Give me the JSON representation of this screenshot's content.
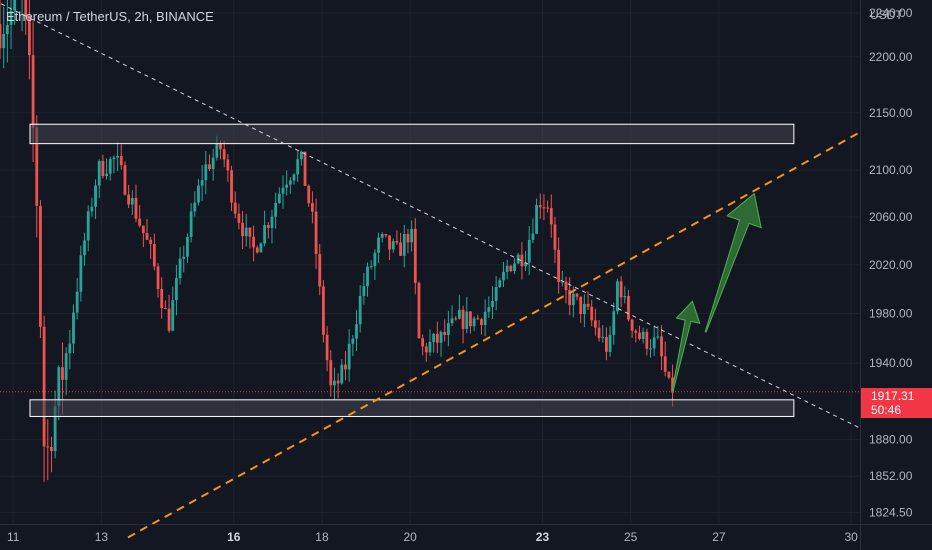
{
  "chart_title": "Ethereum / TetherUS, 2h, BINANCE",
  "price_unit": "USDT",
  "current_price": {
    "value": "1917.31",
    "countdown": "50:46"
  },
  "colors": {
    "background": "#131722",
    "up_candle": "#26a69a",
    "down_candle": "#ef5350",
    "trendline_dashed": "#d1d4dc",
    "support_trendline": "#f7931a",
    "zone_fill": "#434651",
    "zone_border": "#ffffff",
    "arrow_fill": "#2e6b34",
    "arrow_stroke": "#4caf50",
    "price_badge": "#f23645"
  },
  "chart_data": {
    "type": "candlestick",
    "x_ticks": [
      {
        "label": "11",
        "x": 11,
        "bold": false
      },
      {
        "label": "13",
        "x": 13,
        "bold": false
      },
      {
        "label": "16",
        "x": 16,
        "bold": true
      },
      {
        "label": "18",
        "x": 18,
        "bold": false
      },
      {
        "label": "20",
        "x": 20,
        "bold": false
      },
      {
        "label": "23",
        "x": 23,
        "bold": true
      },
      {
        "label": "25",
        "x": 25,
        "bold": false
      },
      {
        "label": "27",
        "x": 27,
        "bold": false
      },
      {
        "label": "30",
        "x": 30,
        "bold": false
      }
    ],
    "y_ticks": [
      2240,
      2200,
      2150,
      2100,
      2060,
      2020,
      1980,
      1940,
      1880,
      1852,
      1824.5
    ],
    "y_tick_labels": [
      "2240.00",
      "2200.00",
      "2150.00",
      "2100.00",
      "2060.00",
      "2020.00",
      "1980.00",
      "1940.00",
      "1880.00",
      "1852.00",
      "1824.50"
    ],
    "y_scale": "log",
    "x_range": [
      10.7,
      30.2
    ],
    "y_range": [
      1816,
      2252
    ],
    "price_series": [
      [
        10.7,
        2230
      ],
      [
        11.3,
        2248
      ],
      [
        11.4,
        2210
      ],
      [
        11.6,
        2095
      ],
      [
        11.8,
        1858
      ],
      [
        12.0,
        1900
      ],
      [
        12.3,
        1950
      ],
      [
        12.7,
        2040
      ],
      [
        13.0,
        2100
      ],
      [
        13.4,
        2110
      ],
      [
        13.8,
        2070
      ],
      [
        14.2,
        2030
      ],
      [
        14.6,
        1970
      ],
      [
        15.0,
        2040
      ],
      [
        15.4,
        2100
      ],
      [
        15.8,
        2120
      ],
      [
        16.1,
        2070
      ],
      [
        16.5,
        2030
      ],
      [
        16.9,
        2060
      ],
      [
        17.2,
        2090
      ],
      [
        17.6,
        2110
      ],
      [
        17.9,
        2050
      ],
      [
        18.1,
        1970
      ],
      [
        18.3,
        1915
      ],
      [
        18.6,
        1935
      ],
      [
        19.0,
        2000
      ],
      [
        19.4,
        2040
      ],
      [
        19.8,
        2030
      ],
      [
        20.1,
        2050
      ],
      [
        20.3,
        1950
      ],
      [
        20.8,
        1960
      ],
      [
        21.2,
        1975
      ],
      [
        21.6,
        1975
      ],
      [
        22.0,
        1990
      ],
      [
        22.3,
        2020
      ],
      [
        22.7,
        2030
      ],
      [
        23.0,
        2075
      ],
      [
        23.25,
        2070
      ],
      [
        23.45,
        2000
      ],
      [
        23.8,
        1990
      ],
      [
        24.1,
        1980
      ],
      [
        24.4,
        1960
      ],
      [
        24.6,
        1950
      ],
      [
        24.8,
        2010
      ],
      [
        25.0,
        1980
      ],
      [
        25.3,
        1960
      ],
      [
        25.7,
        1955
      ],
      [
        25.95,
        1920
      ]
    ],
    "overlays": {
      "resistance_zone": {
        "x_start": 10.7,
        "x_end": 28.7,
        "top": 2140,
        "bottom": 2123
      },
      "support_zone": {
        "x_start": 10.7,
        "x_end": 28.7,
        "top": 1911,
        "bottom": 1898
      },
      "descending_trendline": {
        "points": [
          [
            10.4,
            2255
          ],
          [
            30.2,
            1889
          ]
        ],
        "style": "dashed-white"
      },
      "ascending_trendline": {
        "points": [
          [
            13.6,
            1806
          ],
          [
            30.2,
            2133
          ]
        ],
        "style": "dashed-orange"
      },
      "current_price_line": {
        "value": 1917.31,
        "style": "dotted-red"
      },
      "projection_arrows": [
        {
          "from": [
            25.95,
            1918
          ],
          "to": [
            26.4,
            1990
          ],
          "size": "small"
        },
        {
          "from": [
            26.7,
            1965
          ],
          "to": [
            27.8,
            2080
          ],
          "size": "large"
        }
      ]
    }
  }
}
